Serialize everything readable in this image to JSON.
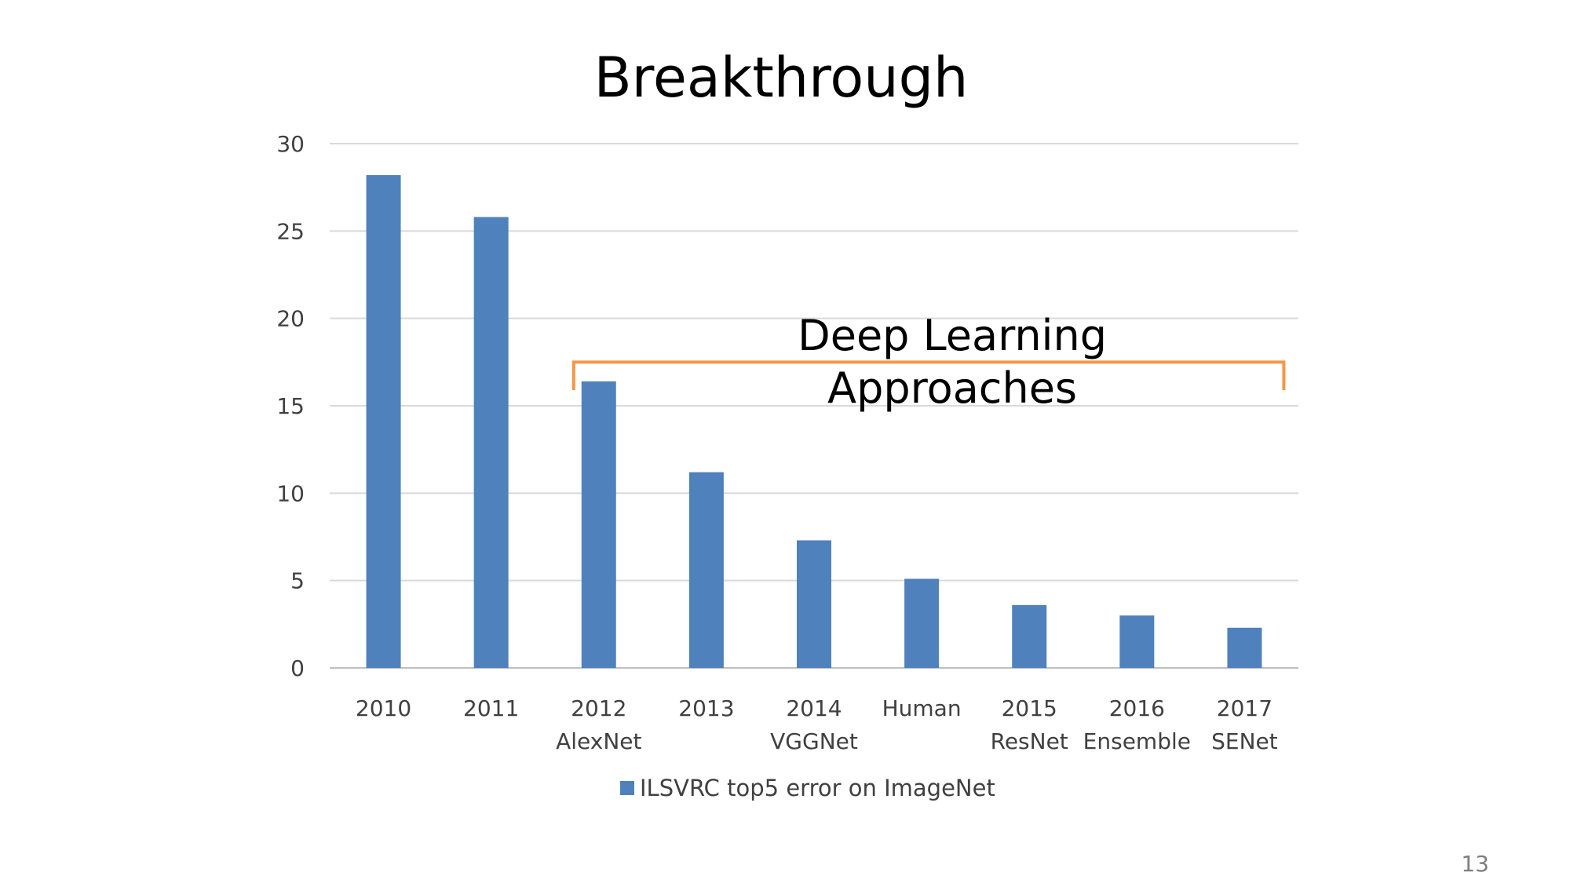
{
  "slide": {
    "title": "Breakthrough",
    "page_number": "13"
  },
  "chart_data": {
    "type": "bar",
    "categories": [
      [
        "2010"
      ],
      [
        "2011"
      ],
      [
        "2012",
        "AlexNet"
      ],
      [
        "2013"
      ],
      [
        "2014",
        "VGGNet"
      ],
      [
        "Human"
      ],
      [
        "2015",
        "ResNet"
      ],
      [
        "2016",
        "Ensemble"
      ],
      [
        "2017",
        "SENet"
      ]
    ],
    "series": [
      {
        "name": "ILSVRC top5 error on ImageNet",
        "values": [
          28.2,
          25.8,
          16.4,
          11.2,
          7.3,
          5.1,
          3.6,
          3.0,
          2.3
        ],
        "color": "#4f81bd"
      }
    ],
    "yticks": [
      "0",
      "5",
      "10",
      "15",
      "20",
      "25",
      "30"
    ],
    "ylim": [
      0,
      30
    ],
    "grid": true,
    "legend_position": "bottom",
    "annotation": {
      "lines": [
        "Deep Learning",
        "Approaches"
      ],
      "from_category": 2,
      "to_category": 8,
      "color": "#f79646"
    }
  }
}
